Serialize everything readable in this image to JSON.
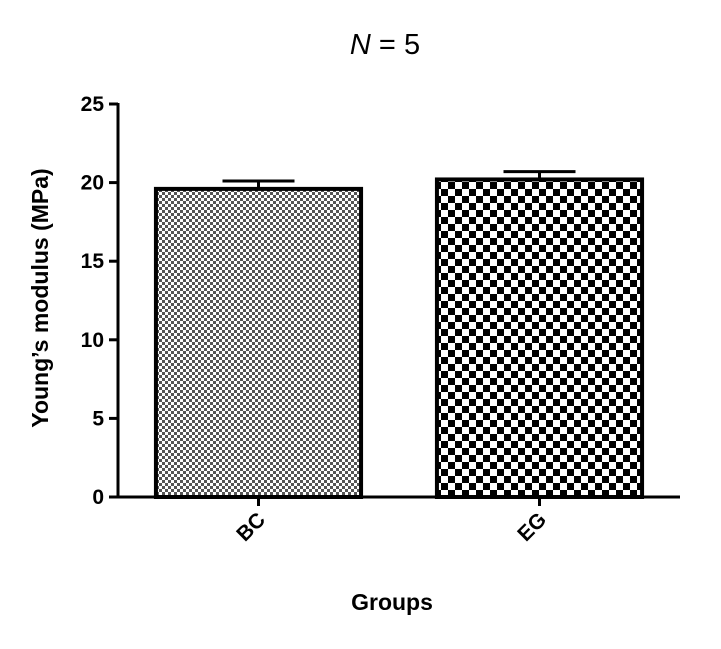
{
  "chart_data": {
    "type": "bar",
    "title_parts": {
      "variable": "N",
      "operator": " = ",
      "value": "5"
    },
    "xlabel": "Groups",
    "ylabel": "Young’s modulus (MPa)",
    "ylim": [
      0,
      25
    ],
    "yticks": [
      0,
      5,
      10,
      15,
      20,
      25
    ],
    "categories": [
      "BC",
      "EG"
    ],
    "values": [
      19.6,
      20.2
    ],
    "errors": [
      0.5,
      0.5
    ],
    "error_bars": "upper",
    "grid": false,
    "legend": "none",
    "patterns": [
      "fine-checker",
      "coarse-checker"
    ],
    "colors": {
      "bar_fill_dark": "#000000",
      "bar_fill_light": "#ffffff",
      "axis": "#000000"
    }
  }
}
